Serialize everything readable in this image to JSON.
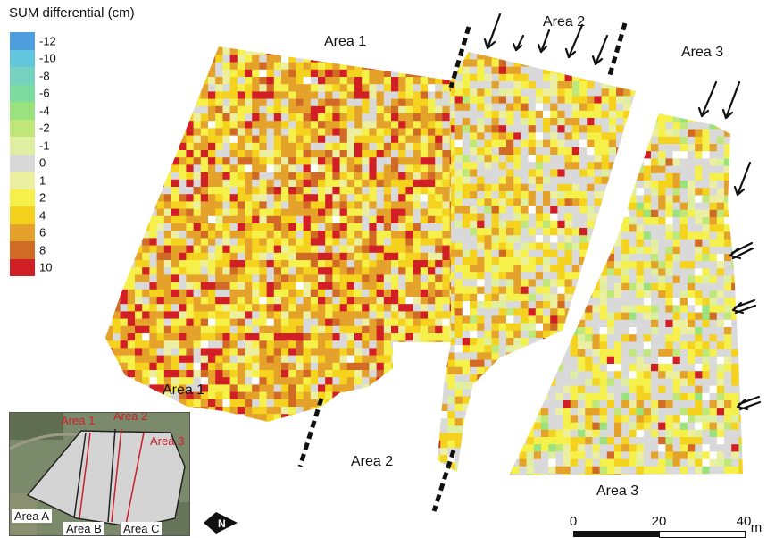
{
  "legend": {
    "title": "SUM differential (cm)",
    "entries": [
      {
        "label": "-12",
        "color": "#4f9fe0"
      },
      {
        "label": "-10",
        "color": "#62c6dd"
      },
      {
        "label": "-8",
        "color": "#76d2be"
      },
      {
        "label": "-6",
        "color": "#7fdca0"
      },
      {
        "label": "-4",
        "color": "#99e27e"
      },
      {
        "label": "-2",
        "color": "#bfe77a"
      },
      {
        "label": "-1",
        "color": "#def0a0"
      },
      {
        "label": "0",
        "color": "#d9d9d9"
      },
      {
        "label": "1",
        "color": "#ecefa0"
      },
      {
        "label": "2",
        "color": "#f6f04a"
      },
      {
        "label": "4",
        "color": "#f4d21e"
      },
      {
        "label": "6",
        "color": "#e4a22a"
      },
      {
        "label": "8",
        "color": "#d06a24"
      },
      {
        "label": "10",
        "color": "#d21f26"
      }
    ]
  },
  "areas": {
    "area1_top": "Area 1",
    "area2_top": "Area 2",
    "area3_top": "Area 3",
    "area1_bottom": "Area 1",
    "area2_bottom": "Area 2",
    "area3_bottom": "Area 3"
  },
  "inset": {
    "red_labels": [
      "Area 1",
      "Area 2",
      "Area 3"
    ],
    "black_labels": [
      "Area A",
      "Area B",
      "Area C"
    ],
    "red_line_color": "#c8202a"
  },
  "north_arrow": {
    "label": "N"
  },
  "scale_bar": {
    "ticks": [
      "0",
      "20",
      "40"
    ],
    "unit": "m"
  }
}
